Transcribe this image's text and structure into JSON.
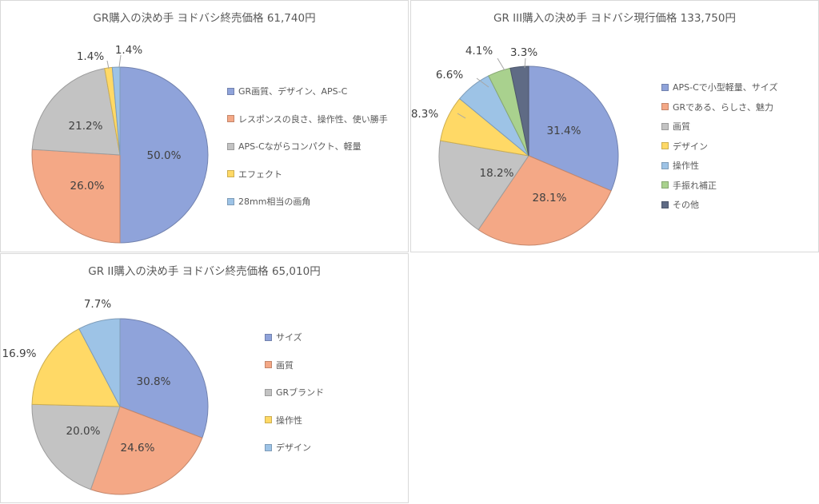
{
  "chart_data": [
    {
      "type": "pie",
      "title": "GR購入の決め手 ヨドバシ終売価格 61,740円",
      "categories": [
        "GR画質、デザイン、APS-C",
        "レスポンスの良さ、操作性、使い勝手",
        "APS-Cながらコンパクト、軽量",
        "エフェクト",
        "28mm相当の画角"
      ],
      "values": [
        50.0,
        26.0,
        21.2,
        1.4,
        1.4
      ],
      "labels": [
        "50.0%",
        "26.0%",
        "21.2%",
        "1.4%",
        "1.4%"
      ],
      "colors": [
        "#8fa3da",
        "#f4a886",
        "#c3c3c3",
        "#ffd966",
        "#9dc3e6"
      ],
      "legend_position": "right"
    },
    {
      "type": "pie",
      "title": "GR III購入の決め手 ヨドバシ現行価格 133,750円",
      "categories": [
        "APS-Cで小型軽量、サイズ",
        "GRである、らしさ、魅力",
        "画質",
        "デザイン",
        "操作性",
        "手振れ補正",
        "その他"
      ],
      "values": [
        31.4,
        28.1,
        18.2,
        8.3,
        6.6,
        4.1,
        3.3
      ],
      "labels": [
        "31.4%",
        "28.1%",
        "18.2%",
        "8.3%",
        "6.6%",
        "4.1%",
        "3.3%"
      ],
      "colors": [
        "#8fa3da",
        "#f4a886",
        "#c3c3c3",
        "#ffd966",
        "#9dc3e6",
        "#a9d18e",
        "#5f6b85"
      ],
      "legend_position": "right"
    },
    {
      "type": "pie",
      "title": "GR II購入の決め手 ヨドバシ終売価格 65,010円",
      "categories": [
        "サイズ",
        "画質",
        "GRブランド",
        "操作性",
        "デザイン"
      ],
      "values": [
        30.8,
        24.6,
        20.0,
        16.9,
        7.7
      ],
      "labels": [
        "30.8%",
        "24.6%",
        "20.0%",
        "16.9%",
        "7.7%"
      ],
      "colors": [
        "#8fa3da",
        "#f4a886",
        "#c3c3c3",
        "#ffd966",
        "#9dc3e6"
      ],
      "legend_position": "right"
    }
  ]
}
